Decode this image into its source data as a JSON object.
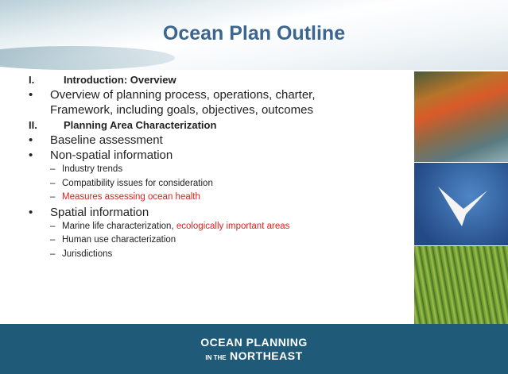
{
  "title": "Ocean Plan Outline",
  "items": [
    {
      "numeral": "I.",
      "text": "Introduction: Overview"
    },
    {
      "bullet": "•",
      "lines": [
        "Overview of planning process, operations, charter,",
        "Framework, including goals, objectives, outcomes"
      ]
    },
    {
      "numeral": "II.",
      "text": "Planning  Area Characterization"
    },
    {
      "bullet": "•",
      "text": "Baseline assessment"
    },
    {
      "bullet": "•",
      "text": "Non-spatial information"
    },
    {
      "dash": "–",
      "parts": [
        {
          "text": "Industry trends",
          "color": "#222222"
        }
      ]
    },
    {
      "dash": "–",
      "parts": [
        {
          "text": "Compatibility issues for consideration",
          "color": "#222222"
        }
      ]
    },
    {
      "dash": "–",
      "parts": [
        {
          "text": "Measures assessing ocean health",
          "color": "#e0201b"
        }
      ]
    },
    {
      "bullet": "•",
      "text": "Spatial information"
    },
    {
      "dash": "–",
      "parts": [
        {
          "text": "Marine life characterization, ",
          "color": "#222222"
        },
        {
          "text": "ecologically important areas",
          "color": "#e0201b"
        }
      ]
    },
    {
      "dash": "–",
      "parts": [
        {
          "text": "Human use characterization",
          "color": "#222222"
        }
      ]
    },
    {
      "dash": "–",
      "parts": [
        {
          "text": "Jurisdictions",
          "color": "#222222"
        }
      ]
    }
  ],
  "footer": {
    "logo_top": "OCEAN PLANNING",
    "logo_small": "IN THE",
    "logo_bottom": "NORTHEAST"
  }
}
